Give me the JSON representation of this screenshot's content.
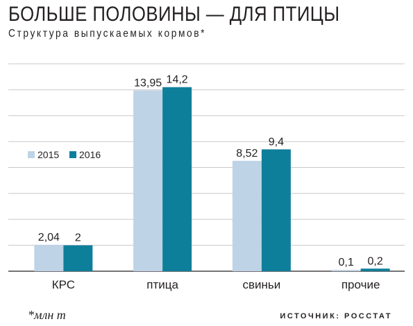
{
  "header": {
    "title": "БОЛЬШЕ ПОЛОВИНЫ — ДЛЯ ПТИЦЫ",
    "subtitle": "Структура выпускаемых кормов*"
  },
  "footer": {
    "footnote": "*млн т",
    "source": "ИСТОЧНИК: РОССТАТ"
  },
  "chart_data": {
    "type": "bar",
    "categories": [
      "КРС",
      "птица",
      "свиньи",
      "прочие"
    ],
    "series": [
      {
        "name": "2015",
        "values": [
          2.04,
          13.95,
          8.52,
          0.1
        ],
        "labels": [
          "2,04",
          "13,95",
          "8,52",
          "0,1"
        ],
        "color": "#bed3e5"
      },
      {
        "name": "2016",
        "values": [
          2,
          14.2,
          9.4,
          0.2
        ],
        "labels": [
          "2",
          "14,2",
          "9,4",
          "0,2"
        ],
        "color": "#0e7f9b"
      }
    ],
    "ylim": [
      0,
      16
    ],
    "grid": true,
    "legend": "left, middle"
  }
}
